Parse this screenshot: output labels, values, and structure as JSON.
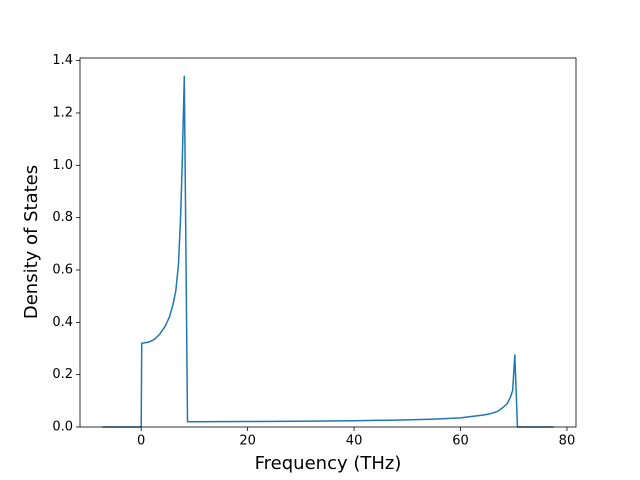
{
  "chart_data": {
    "type": "line",
    "x_label": "Frequency (THz)",
    "y_label": "Density of States",
    "x": [
      -7.3,
      -3,
      0,
      0.1,
      1.5,
      2.5,
      3.5,
      4.5,
      5.3,
      6,
      6.5,
      7,
      7.4,
      7.7,
      8.1,
      8.7,
      20,
      30,
      40,
      50,
      55,
      60,
      62,
      64,
      65.5,
      67,
      68,
      68.8,
      69.4,
      69.8,
      70.2,
      70.7,
      74,
      77.5
    ],
    "series": [
      {
        "color": "#1f77b4",
        "values": [
          0,
          0,
          0,
          0.32,
          0.325,
          0.335,
          0.355,
          0.385,
          0.42,
          0.47,
          0.52,
          0.62,
          0.8,
          1.0,
          1.34,
          0.02,
          0.021,
          0.022,
          0.024,
          0.027,
          0.03,
          0.035,
          0.04,
          0.045,
          0.05,
          0.06,
          0.075,
          0.09,
          0.115,
          0.14,
          0.275,
          0,
          0,
          0
        ]
      }
    ],
    "xlim": [
      -11.5,
      81.7
    ],
    "ylim": [
      0,
      1.41
    ],
    "xticks": [
      0,
      20,
      40,
      60,
      80
    ],
    "yticks": [
      {
        "value": 0,
        "label": "0.0"
      },
      0.2,
      0.4,
      0.6,
      0.8,
      {
        "value": 1,
        "label": "1.0"
      },
      1.2,
      1.4
    ],
    "grid": false
  }
}
